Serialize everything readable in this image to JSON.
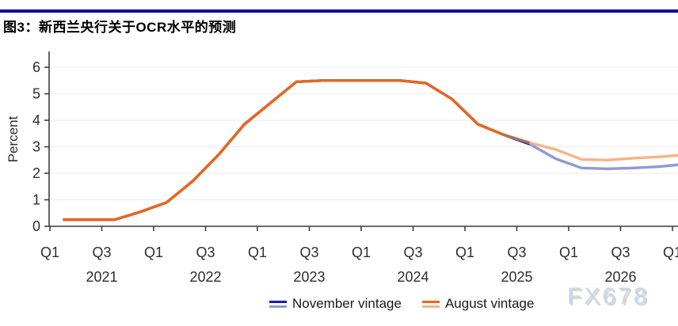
{
  "header": {
    "title": "图3：新西兰央行关于OCR水平的预测"
  },
  "watermark": "FX678",
  "colors": {
    "top_rule": "#0101a0",
    "grid": "#efefef",
    "axis": "#3c3c3c",
    "tick_text": "#2e2e2e",
    "overlap_blend": "#a9735c"
  },
  "legend": {
    "items": [
      {
        "label": "November vintage",
        "history_color": "#1a1aa6",
        "forecast_color": "#8e99d6"
      },
      {
        "label": "August vintage",
        "history_color": "#e8671c",
        "forecast_color": "#f8b285"
      }
    ]
  },
  "chart_data": {
    "type": "line",
    "title": "图3：新西兰央行关于OCR水平的预测",
    "xlabel": "",
    "ylabel": "Percent",
    "ylim": [
      0,
      6
    ],
    "yticks": [
      0,
      1,
      2,
      3,
      4,
      5,
      6
    ],
    "grid": true,
    "legend_position": "bottom",
    "categories": [
      "2021 Q1",
      "2021 Q2",
      "2021 Q3",
      "2021 Q4",
      "2022 Q1",
      "2022 Q2",
      "2022 Q3",
      "2022 Q4",
      "2023 Q1",
      "2023 Q2",
      "2023 Q3",
      "2023 Q4",
      "2024 Q1",
      "2024 Q2",
      "2024 Q3",
      "2024 Q4",
      "2025 Q1",
      "2025 Q2",
      "2025 Q3",
      "2025 Q4",
      "2026 Q1",
      "2026 Q2",
      "2026 Q3",
      "2026 Q4",
      "2027 Q1"
    ],
    "x_axis": {
      "tick_labels": [
        "Q1",
        "Q3",
        "Q1",
        "Q3",
        "Q1",
        "Q3",
        "Q1",
        "Q3",
        "Q1",
        "Q3",
        "Q1",
        "Q3",
        "Q1"
      ],
      "year_labels": [
        "2021",
        "2022",
        "2023",
        "2024",
        "2025",
        "2026"
      ]
    },
    "series": [
      {
        "name": "November vintage",
        "history_color": "#1a1aa6",
        "forecast_color": "#8e99d6",
        "forecast_start_index": 18,
        "values": [
          0.25,
          0.25,
          0.25,
          0.55,
          0.9,
          1.7,
          2.7,
          3.85,
          4.65,
          5.45,
          5.5,
          5.5,
          5.5,
          5.5,
          5.4,
          4.8,
          3.85,
          3.45,
          3.1,
          2.55,
          2.2,
          2.17,
          2.2,
          2.25,
          2.35
        ]
      },
      {
        "name": "August vintage",
        "history_color": "#e8671c",
        "forecast_color": "#f8b285",
        "forecast_start_index": 17,
        "values": [
          0.25,
          0.25,
          0.25,
          0.55,
          0.9,
          1.7,
          2.7,
          3.85,
          4.65,
          5.45,
          5.5,
          5.5,
          5.5,
          5.5,
          5.4,
          4.8,
          3.85,
          3.45,
          3.15,
          2.9,
          2.52,
          2.5,
          2.57,
          2.62,
          2.7
        ]
      }
    ]
  }
}
